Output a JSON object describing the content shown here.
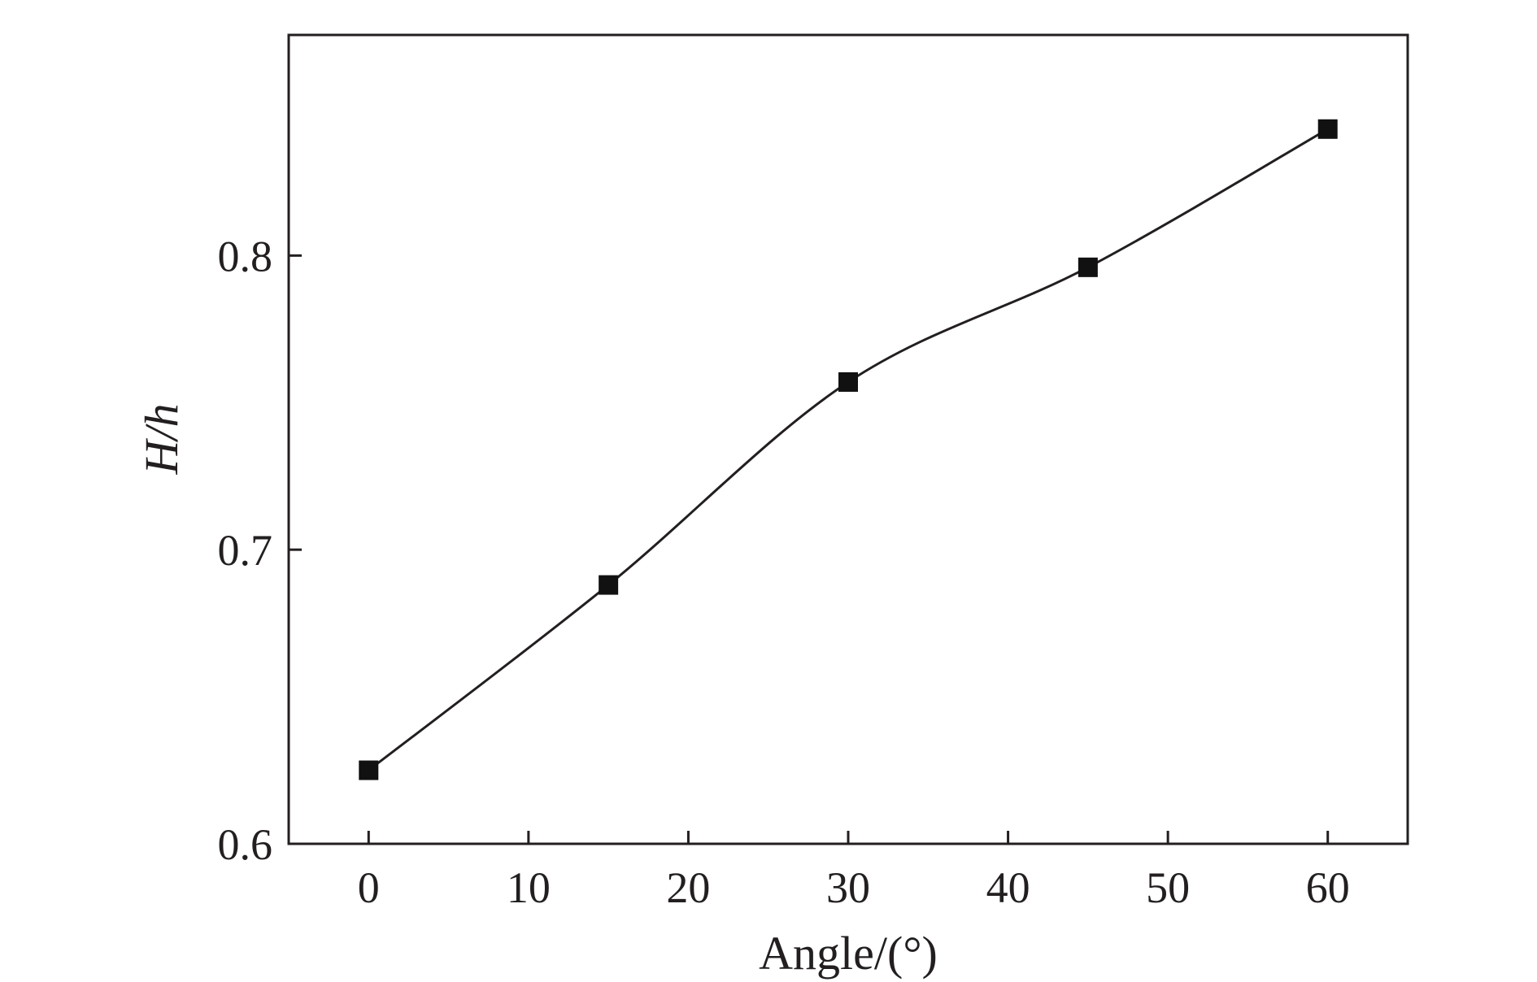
{
  "chart_data": {
    "type": "line",
    "xlabel": "Angle/(°)",
    "ylabel": "H/h",
    "xlim": [
      -5,
      65
    ],
    "ylim": [
      0.6,
      0.875
    ],
    "x_ticks": [
      0,
      10,
      20,
      30,
      40,
      50,
      60
    ],
    "x_tick_labels": [
      "0",
      "10",
      "20",
      "30",
      "40",
      "50",
      "60"
    ],
    "y_ticks": [
      0.6,
      0.7,
      0.8
    ],
    "y_tick_labels": [
      "0.6",
      "0.7",
      "0.8"
    ],
    "grid": false,
    "legend": "none",
    "series": [
      {
        "marker": "square",
        "line": "smooth",
        "color": "#111111",
        "x": [
          0,
          15,
          30,
          45,
          60
        ],
        "y": [
          0.625,
          0.688,
          0.757,
          0.796,
          0.843
        ]
      }
    ]
  }
}
